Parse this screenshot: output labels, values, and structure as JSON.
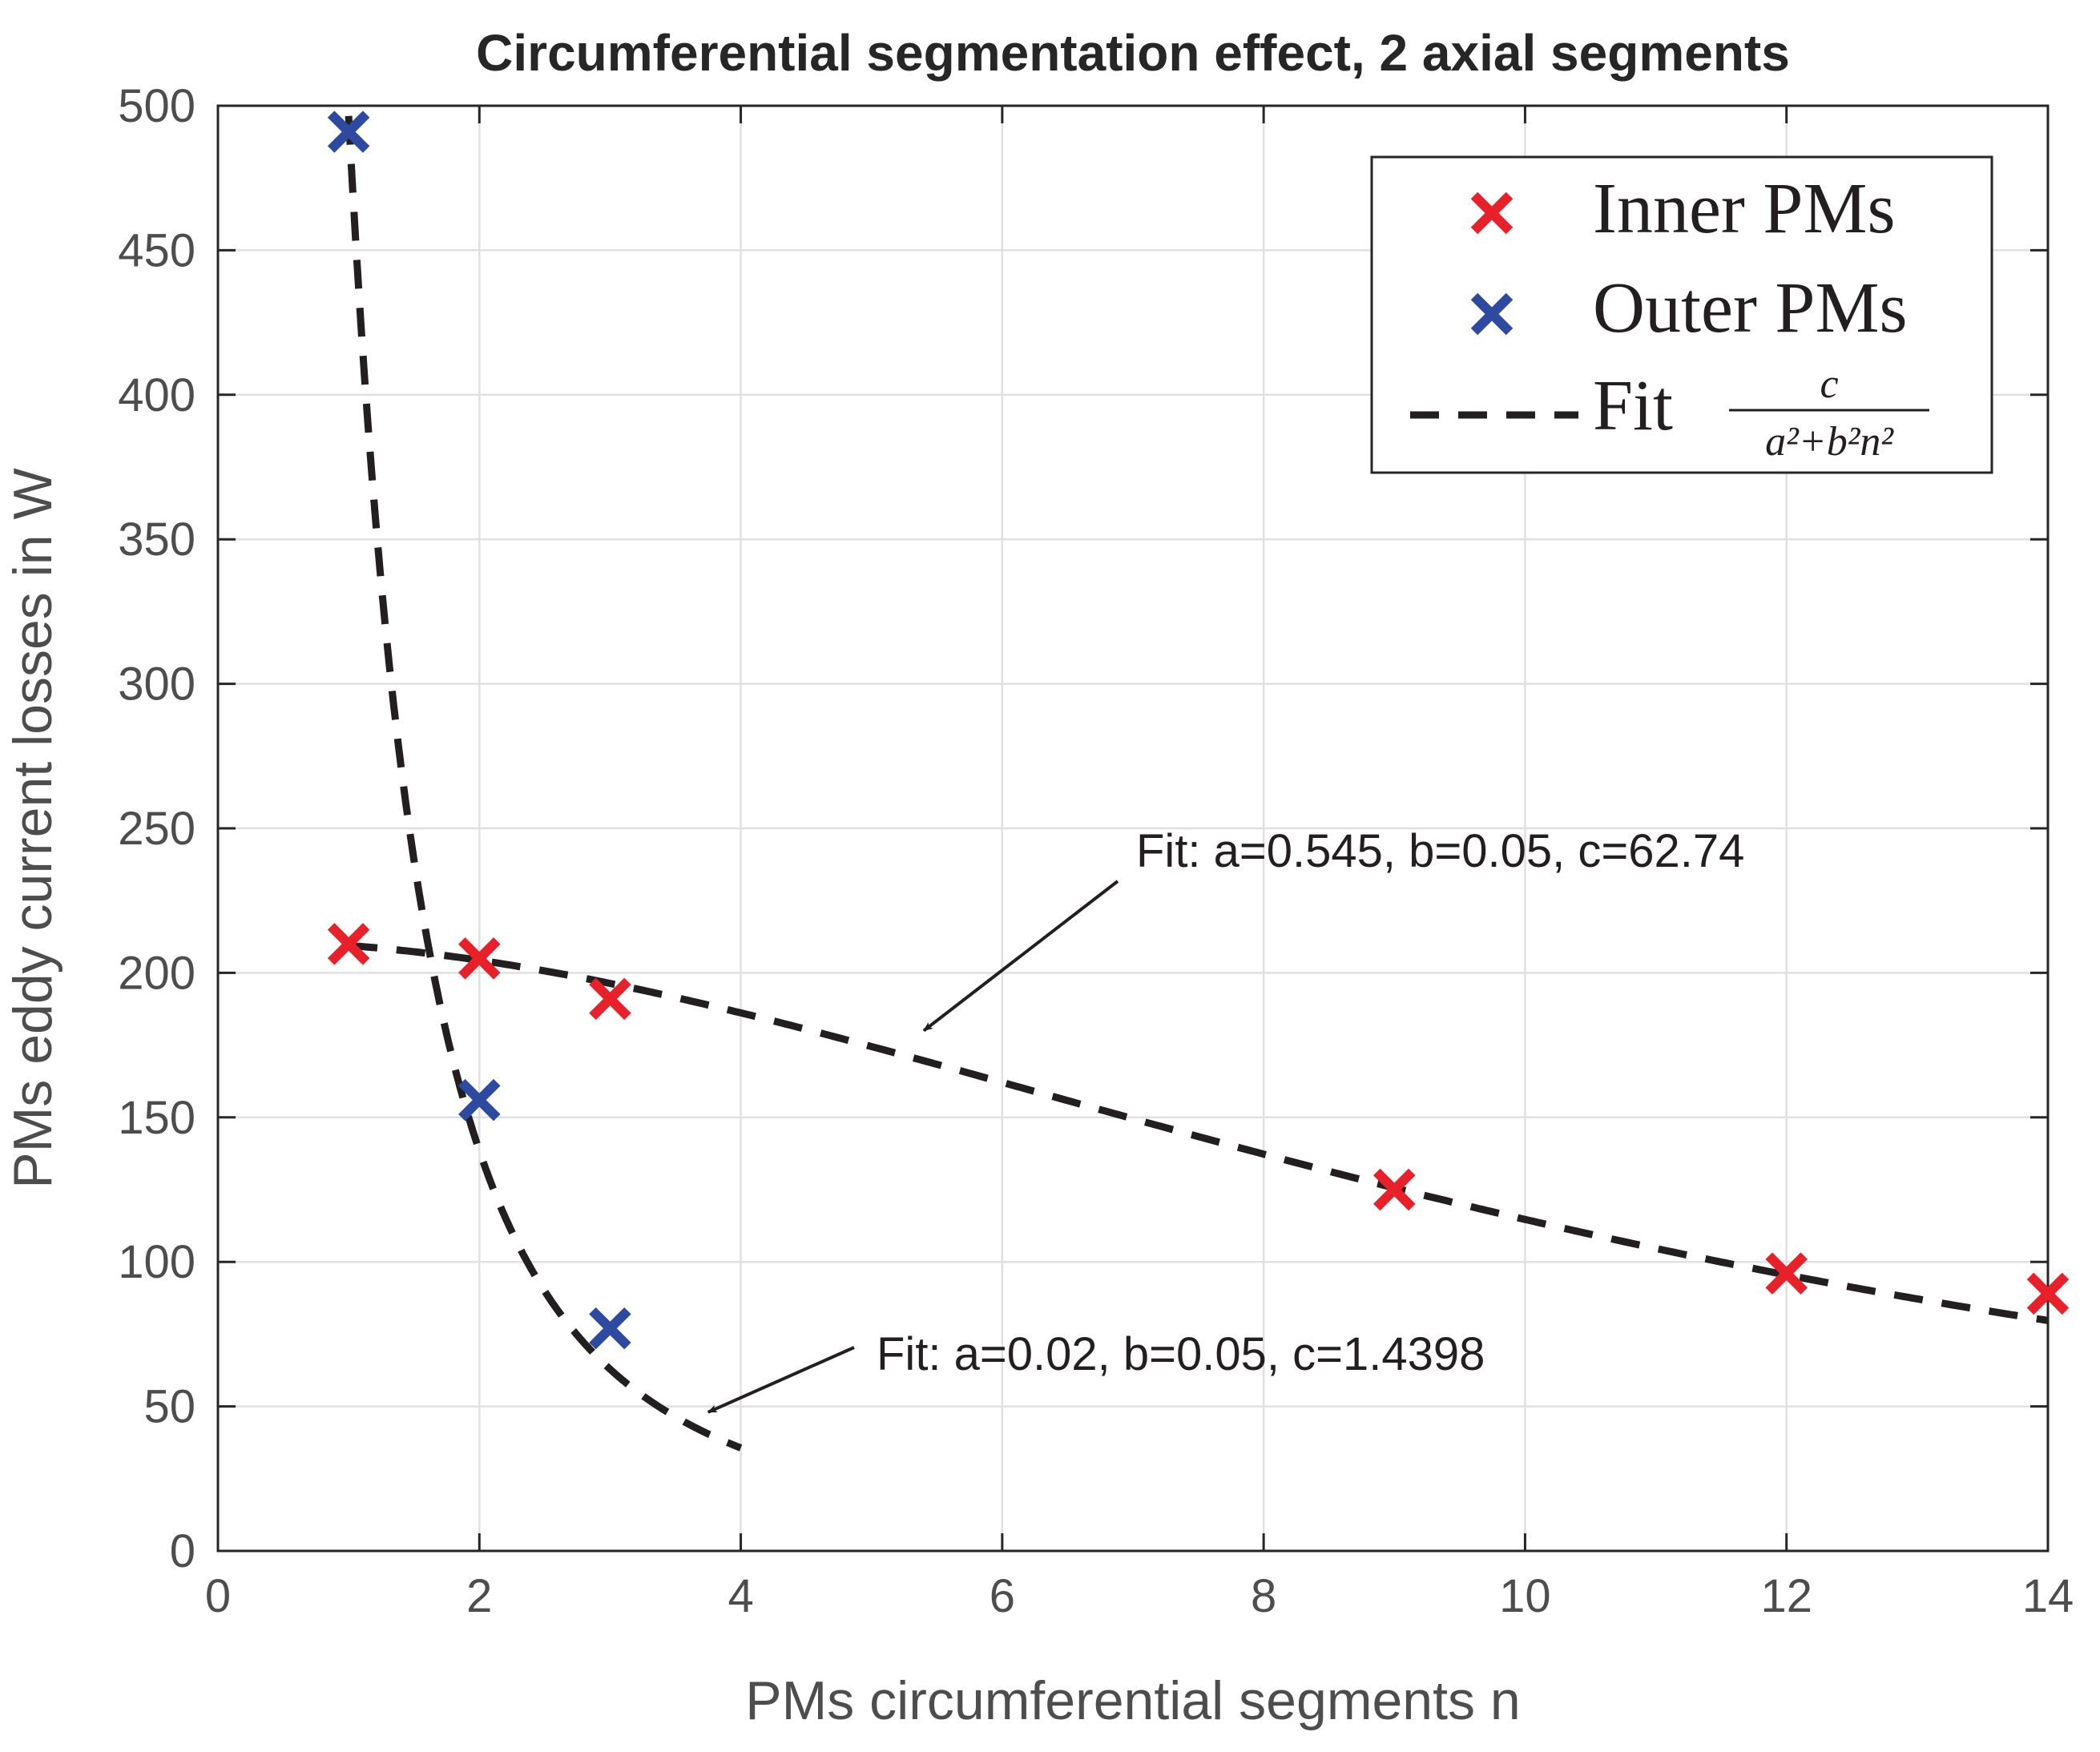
{
  "chart_data": {
    "type": "scatter",
    "title": "Circumferential segmentation effect, 2 axial segments",
    "xlabel": "PMs circumferential segments n",
    "ylabel": "PMs eddy current losses in W",
    "xlim": [
      0,
      14
    ],
    "ylim": [
      0,
      500
    ],
    "xticks": [
      0,
      2,
      4,
      6,
      8,
      10,
      12,
      14
    ],
    "yticks": [
      0,
      50,
      100,
      150,
      200,
      250,
      300,
      350,
      400,
      450,
      500
    ],
    "grid": true,
    "legend_position": "top-right",
    "series": [
      {
        "name": "Inner PMs",
        "marker": "x",
        "color": "#e8202a",
        "x": [
          1,
          2,
          3,
          9,
          12,
          14
        ],
        "y": [
          210,
          205,
          191,
          125,
          96,
          89
        ]
      },
      {
        "name": "Outer PMs",
        "marker": "x",
        "color": "#2e4aa0",
        "x": [
          1,
          2,
          3
        ],
        "y": [
          491,
          156,
          77
        ]
      }
    ],
    "fits": [
      {
        "name": "Inner PMs fit",
        "a": 0.545,
        "b": 0.05,
        "c": 62.74,
        "x_range": [
          1,
          14
        ],
        "color": "#231f20"
      },
      {
        "name": "Outer PMs fit",
        "a": 0.02,
        "b": 0.05,
        "c": 1.4398,
        "x_range": [
          1,
          4
        ],
        "color": "#231f20"
      }
    ],
    "legend": {
      "entries": [
        {
          "label": "Inner PMs",
          "color": "#e8202a",
          "marker": "x"
        },
        {
          "label": "Outer PMs",
          "color": "#2e4aa0",
          "marker": "x"
        },
        {
          "label": "Fit",
          "formula_numerator": "c",
          "formula_denominator": "a²+b²n²",
          "color": "#231f20",
          "marker": "dashed-line"
        }
      ]
    },
    "annotations": [
      {
        "text": "Fit: a=0.545, b=0.05, c=62.74",
        "points_to": [
          5.4,
          180
        ]
      },
      {
        "text": "Fit: a=0.02, b=0.05, c=1.4398",
        "points_to": [
          3.75,
          48
        ]
      }
    ]
  }
}
